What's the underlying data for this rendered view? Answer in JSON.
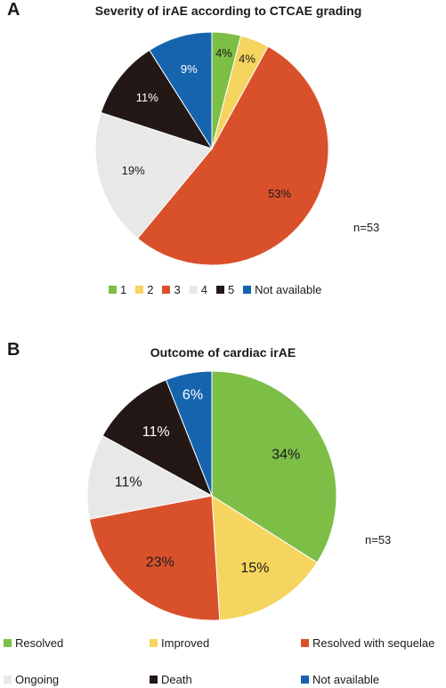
{
  "panels": {
    "a": {
      "letter": "A",
      "title": "Severity of irAE according to CTCAE grading",
      "n": "n=53"
    },
    "b": {
      "letter": "B",
      "title": "Outcome of cardiac irAE",
      "n": "n=53"
    }
  },
  "colors": {
    "green": "#7dbe47",
    "yellow": "#f5d55f",
    "orange": "#d9512b",
    "lightgray": "#e8e8e8",
    "black": "#231815",
    "blue": "#1664ad"
  },
  "chart_data": [
    {
      "type": "pie",
      "title": "Severity of irAE according to CTCAE grading",
      "annotation": "n=53",
      "legend_position": "bottom",
      "slices": [
        {
          "label": "1",
          "value": 4,
          "value_label": "4%",
          "color": "#7dbe47"
        },
        {
          "label": "2",
          "value": 4,
          "value_label": "4%",
          "color": "#f5d55f"
        },
        {
          "label": "3",
          "value": 53,
          "value_label": "53%",
          "color": "#d9512b"
        },
        {
          "label": "4",
          "value": 19,
          "value_label": "19%",
          "color": "#e8e8e8"
        },
        {
          "label": "5",
          "value": 11,
          "value_label": "11%",
          "color": "#231815"
        },
        {
          "label": "Not available",
          "value": 9,
          "value_label": "9%",
          "color": "#1664ad"
        }
      ]
    },
    {
      "type": "pie",
      "title": "Outcome of cardiac irAE",
      "annotation": "n=53",
      "legend_position": "bottom",
      "slices": [
        {
          "label": "Resolved",
          "value": 34,
          "value_label": "34%",
          "color": "#7dbe47"
        },
        {
          "label": "Improved",
          "value": 15,
          "value_label": "15%",
          "color": "#f5d55f"
        },
        {
          "label": "Resolved with sequelae",
          "value": 23,
          "value_label": "23%",
          "color": "#d9512b"
        },
        {
          "label": "Ongoing",
          "value": 11,
          "value_label": "11%",
          "color": "#e8e8e8"
        },
        {
          "label": "Death",
          "value": 11,
          "value_label": "11%",
          "color": "#231815"
        },
        {
          "label": "Not available",
          "value": 6,
          "value_label": "6%",
          "color": "#1664ad"
        }
      ]
    }
  ]
}
